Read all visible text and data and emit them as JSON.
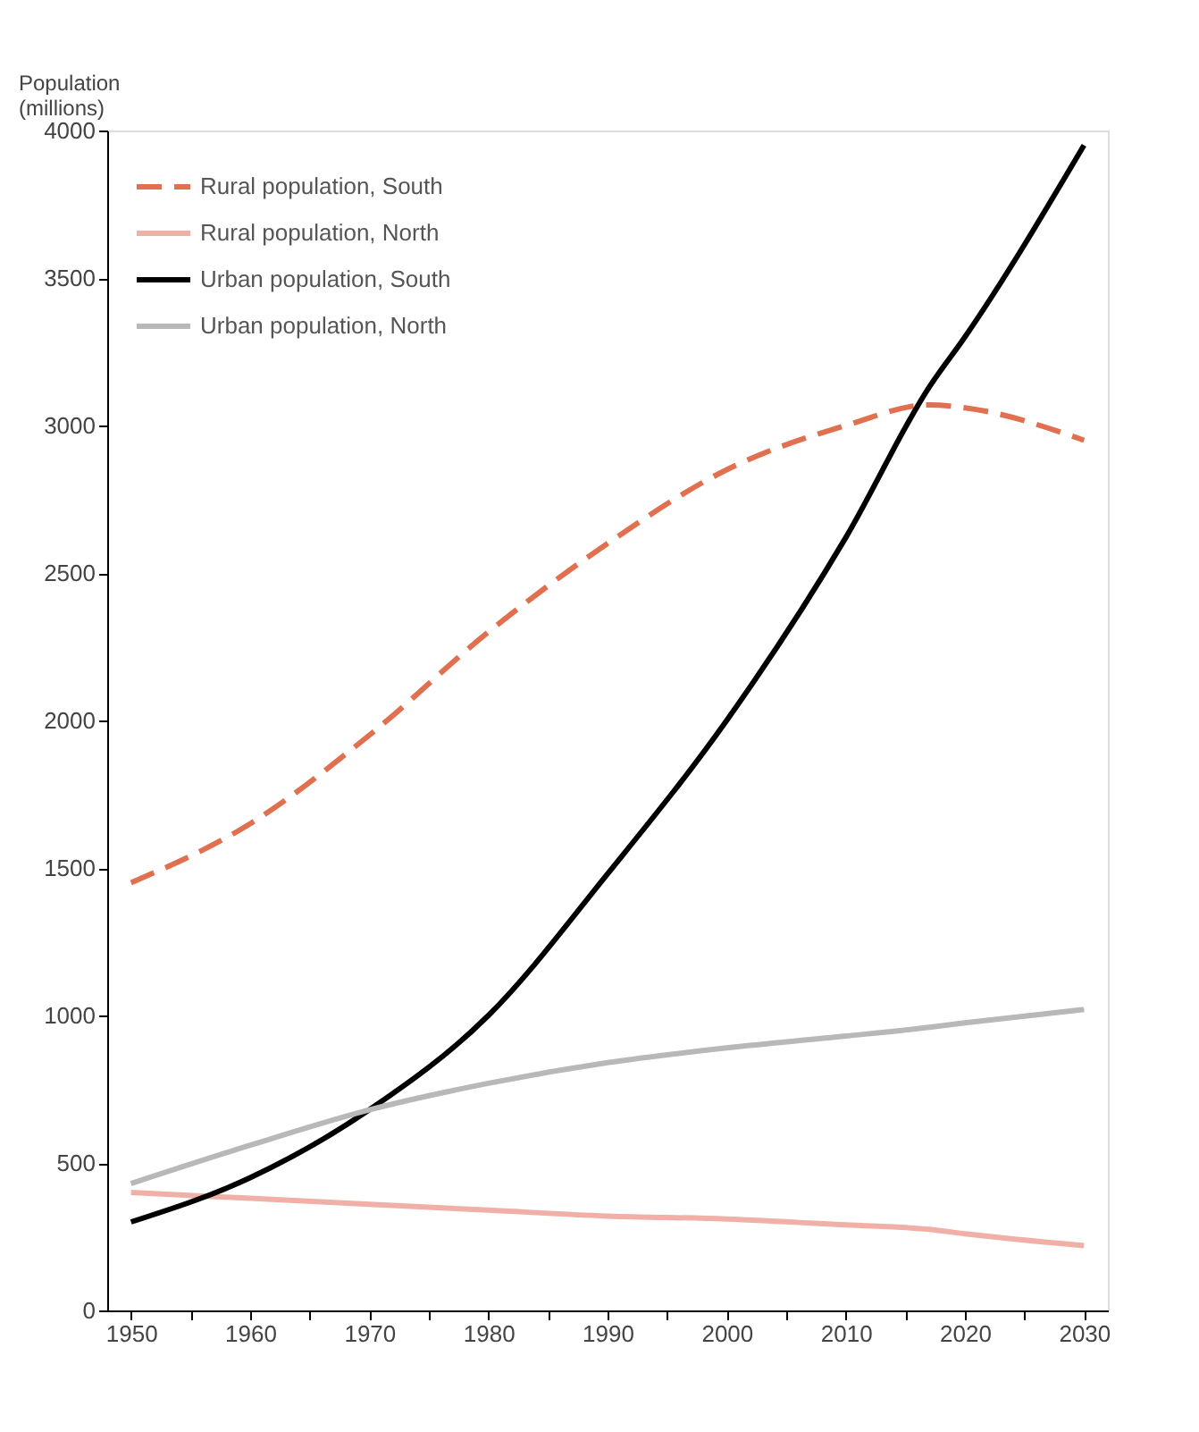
{
  "chart_data": {
    "type": "line",
    "ylabel": "Population (millions)",
    "legend": "top left",
    "grid": false,
    "x": [
      1950,
      1960,
      1970,
      1980,
      1990,
      2000,
      2010,
      2017,
      2020,
      2030
    ],
    "xlim": [
      1948,
      2032
    ],
    "xticks": [
      1950,
      {
        "value": 1955,
        "label": null
      },
      1960,
      {
        "value": 1965,
        "label": null
      },
      1970,
      {
        "value": 1975,
        "label": null
      },
      1980,
      {
        "value": 1985,
        "label": null
      },
      1990,
      {
        "value": 1995,
        "label": null
      },
      2000,
      {
        "value": 2005,
        "label": null
      },
      2010,
      {
        "value": 2015,
        "label": null
      },
      2020,
      {
        "value": 2025,
        "label": null
      },
      2030
    ],
    "ylim": [
      0,
      4000
    ],
    "yticks": [
      0,
      500,
      1000,
      1500,
      2000,
      2500,
      3000,
      3500,
      4000
    ],
    "series": [
      {
        "name": "Rural population, South",
        "color": "#e07050",
        "line_style": "dashed",
        "values": [
          1450,
          1650,
          1950,
          2300,
          2600,
          2850,
          3000,
          3070,
          3060,
          2950
        ]
      },
      {
        "name": "Rural population, North",
        "color": "#f0b0a8",
        "line_style": "solid",
        "values": [
          400,
          380,
          360,
          340,
          320,
          310,
          290,
          275,
          260,
          220
        ]
      },
      {
        "name": "Urban population, South",
        "color": "#000000",
        "line_style": "solid",
        "values": [
          300,
          450,
          680,
          1000,
          1480,
          2000,
          2620,
          3130,
          3300,
          3950
        ]
      },
      {
        "name": "Urban population, North",
        "color": "#b8b8b8",
        "line_style": "solid",
        "values": [
          430,
          560,
          680,
          770,
          840,
          890,
          930,
          960,
          975,
          1020
        ]
      }
    ]
  }
}
